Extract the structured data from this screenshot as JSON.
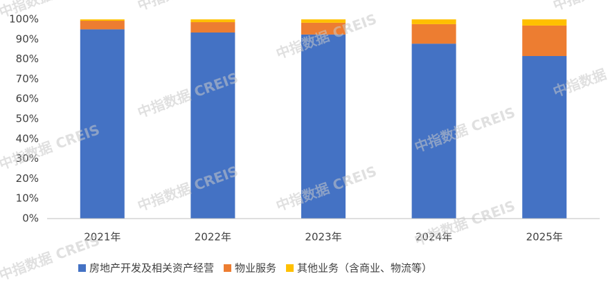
{
  "chart_data": {
    "type": "stacked_bar",
    "watermark": "中指数据 CREIS",
    "categories": [
      "2021年",
      "2022年",
      "2023年",
      "2024年",
      "2025年"
    ],
    "series": [
      {
        "name": "房地产开发及相关资产经营",
        "color": "#4472c4",
        "values": [
          95,
          93.4,
          92.4,
          87.8,
          81.6
        ]
      },
      {
        "name": "物业服务",
        "color": "#ed7d31",
        "values": [
          4.3,
          5.2,
          5.9,
          9.8,
          15.3
        ]
      },
      {
        "name": "其他业务（含商业、物流等）",
        "color": "#ffc000",
        "values": [
          0.7,
          1.4,
          1.7,
          2.4,
          3.1
        ]
      }
    ],
    "ylim": [
      0,
      100
    ],
    "yticks": [
      {
        "value": 0,
        "label": "0%"
      },
      {
        "value": 10,
        "label": "10%"
      },
      {
        "value": 20,
        "label": "20%"
      },
      {
        "value": 30,
        "label": "30%"
      },
      {
        "value": 40,
        "label": "40%"
      },
      {
        "value": 50,
        "label": "50%"
      },
      {
        "value": 60,
        "label": "60%"
      },
      {
        "value": 70,
        "label": "70%"
      },
      {
        "value": 80,
        "label": "80%"
      },
      {
        "value": 90,
        "label": "90%"
      },
      {
        "value": 100,
        "label": "100%"
      }
    ],
    "legend": "bottom"
  }
}
